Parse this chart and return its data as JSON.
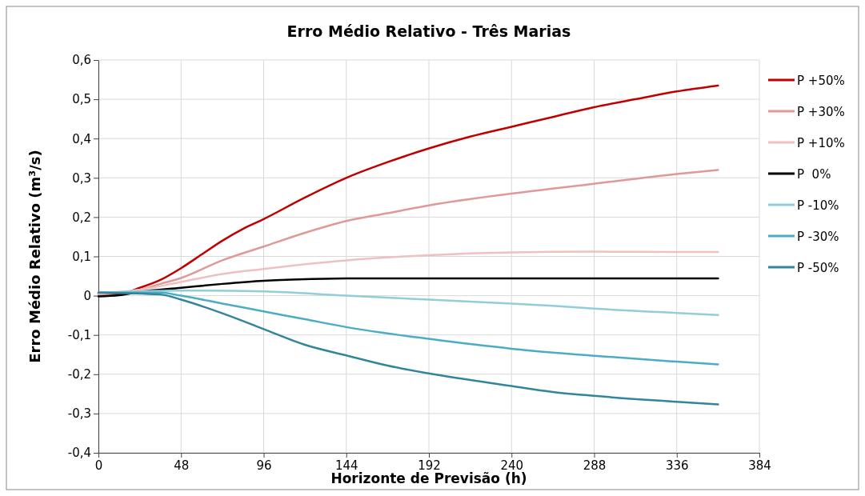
{
  "chart_data": {
    "type": "line",
    "title": "Erro Médio Relativo - Três Marias",
    "xlabel": "Horizonte de Previsão (h)",
    "ylabel": "Erro Médio Relativo  (m³/s)",
    "xlim": [
      0,
      384
    ],
    "xticks": [
      0,
      48,
      96,
      144,
      192,
      240,
      288,
      336,
      384
    ],
    "ylim": [
      -0.4,
      0.6
    ],
    "yticks": [
      {
        "value": -0.4,
        "label": "-0,4"
      },
      {
        "value": -0.3,
        "label": "-0,3"
      },
      {
        "value": -0.2,
        "label": "-0,2"
      },
      {
        "value": -0.1,
        "label": "-0,1"
      },
      {
        "value": 0,
        "label": "0"
      },
      {
        "value": 0.1,
        "label": "0,1"
      },
      {
        "value": 0.2,
        "label": "0,2"
      },
      {
        "value": 0.3,
        "label": "0,3"
      },
      {
        "value": 0.4,
        "label": "0,4"
      },
      {
        "value": 0.5,
        "label": "0,5"
      },
      {
        "value": 0.6,
        "label": "0,6"
      }
    ],
    "grid": true,
    "legend": "right",
    "marker": "none",
    "line_style": "solid",
    "series": [
      {
        "name": "P +50%",
        "color": "#c00000",
        "x": [
          0,
          12,
          24,
          36,
          48,
          60,
          72,
          84,
          96,
          120,
          144,
          168,
          192,
          216,
          240,
          264,
          288,
          312,
          336,
          360
        ],
        "values": [
          0.005,
          0.005,
          0.02,
          0.04,
          0.07,
          0.105,
          0.14,
          0.17,
          0.195,
          0.25,
          0.3,
          0.34,
          0.375,
          0.405,
          0.43,
          0.455,
          0.48,
          0.5,
          0.52,
          0.535
        ]
      },
      {
        "name": "P +30%",
        "color": "#e09898",
        "x": [
          0,
          24,
          36,
          48,
          72,
          96,
          120,
          144,
          168,
          192,
          240,
          288,
          336,
          360
        ],
        "values": [
          0.005,
          0.015,
          0.03,
          0.045,
          0.09,
          0.125,
          0.16,
          0.19,
          0.21,
          0.23,
          0.26,
          0.285,
          0.31,
          0.32
        ]
      },
      {
        "name": "P +10%",
        "color": "#f0c0c0",
        "x": [
          0,
          24,
          48,
          72,
          96,
          120,
          144,
          192,
          240,
          288,
          336,
          360
        ],
        "values": [
          0.005,
          0.015,
          0.035,
          0.055,
          0.068,
          0.08,
          0.09,
          0.103,
          0.11,
          0.112,
          0.111,
          0.111
        ]
      },
      {
        "name": "P  0%",
        "color": "#000000",
        "x": [
          0,
          12,
          24,
          48,
          72,
          96,
          120,
          144,
          360
        ],
        "values": [
          -0.002,
          0.001,
          0.01,
          0.02,
          0.03,
          0.038,
          0.042,
          0.044,
          0.044
        ]
      },
      {
        "name": "P -10%",
        "color": "#92cddc",
        "x": [
          0,
          48,
          96,
          144,
          192,
          240,
          264,
          288,
          336,
          360
        ],
        "values": [
          0.008,
          0.013,
          0.011,
          0,
          -0.01,
          -0.02,
          -0.026,
          -0.033,
          -0.044,
          -0.049
        ]
      },
      {
        "name": "P -30%",
        "color": "#4bacc6",
        "x": [
          0,
          36,
          48,
          72,
          96,
          120,
          144,
          192,
          240,
          288,
          336,
          360
        ],
        "values": [
          0.008,
          0.008,
          0,
          -0.02,
          -0.04,
          -0.06,
          -0.08,
          -0.11,
          -0.135,
          -0.153,
          -0.168,
          -0.175
        ]
      },
      {
        "name": "P -50%",
        "color": "#31859c",
        "x": [
          0,
          36,
          48,
          72,
          96,
          120,
          144,
          168,
          192,
          240,
          264,
          288,
          336,
          360
        ],
        "values": [
          0.008,
          0.003,
          -0.01,
          -0.045,
          -0.085,
          -0.125,
          -0.152,
          -0.178,
          -0.198,
          -0.23,
          -0.245,
          -0.255,
          -0.27,
          -0.277
        ]
      }
    ]
  }
}
